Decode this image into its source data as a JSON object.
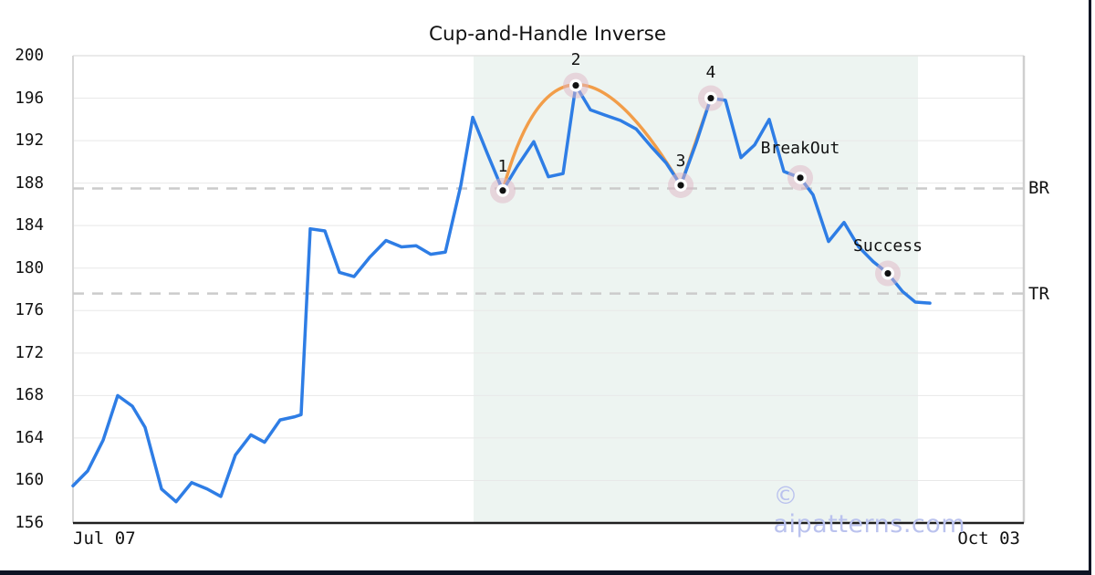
{
  "title": "Cup-and-Handle Inverse",
  "watermark": "© aipatterns.com",
  "colors": {
    "price_line": "#2e7de5",
    "pattern_overlay": "#f29d49",
    "shaded_region": "#edf4f1",
    "marker_halo": "rgba(224,182,198,0.5)",
    "marker_dot": "#111111",
    "gridline": "#e8e8e8",
    "dashed_level": "#cbcbcb",
    "watermark": "#bac2ee",
    "window_edge": "#0d1424",
    "axis_bottom": "#1f1f1f",
    "axis_light": "#d6d6d6"
  },
  "chart_data": {
    "type": "line",
    "title": "Cup-and-Handle Inverse",
    "xlabel_start": "Jul 07",
    "xlabel_end": "Oct 03",
    "ylim": [
      156,
      200
    ],
    "y_ticks": [
      156,
      160,
      164,
      168,
      172,
      176,
      180,
      184,
      188,
      192,
      196,
      200
    ],
    "grid": "horizontal",
    "series": [
      {
        "name": "price",
        "x_frac": [
          0,
          0.0154,
          0.0317,
          0.047,
          0.0624,
          0.0758,
          0.0931,
          0.1084,
          0.1248,
          0.1411,
          0.1555,
          0.1708,
          0.1871,
          0.2015,
          0.2178,
          0.2332,
          0.2399,
          0.2495,
          0.2649,
          0.2802,
          0.2956,
          0.3119,
          0.3292,
          0.3455,
          0.3609,
          0.3762,
          0.3916,
          0.4079,
          0.4204,
          0.4357,
          0.452,
          0.4674,
          0.4846,
          0.5,
          0.5154,
          0.5288,
          0.5442,
          0.5595,
          0.5758,
          0.5922,
          0.6075,
          0.6238,
          0.6392,
          0.6555,
          0.6708,
          0.6862,
          0.7025,
          0.7169,
          0.7322,
          0.7476,
          0.7649,
          0.7783,
          0.7946,
          0.8109,
          0.8263,
          0.8417,
          0.857,
          0.8724,
          0.8858,
          0.9012
        ],
        "values": [
          159.5,
          160.9,
          163.8,
          168.0,
          167.0,
          165.0,
          159.2,
          158.0,
          159.8,
          159.2,
          158.5,
          162.4,
          164.3,
          163.6,
          165.7,
          166.0,
          166.2,
          183.7,
          183.5,
          179.6,
          179.2,
          181.0,
          182.6,
          182.0,
          182.1,
          181.3,
          181.5,
          187.8,
          194.2,
          190.8,
          187.3,
          189.6,
          191.9,
          188.6,
          188.9,
          197.2,
          194.9,
          194.4,
          193.9,
          193.1,
          191.5,
          189.9,
          187.8,
          191.8,
          196.0,
          195.8,
          190.4,
          191.6,
          194.0,
          189.1,
          188.5,
          186.9,
          182.5,
          184.3,
          182.0,
          180.6,
          179.5,
          177.8,
          176.8,
          176.7
        ]
      }
    ],
    "levels": [
      {
        "id": "breakout",
        "label": "BR",
        "value": 187.5
      },
      {
        "id": "target",
        "label": "TR",
        "value": 177.6
      }
    ],
    "pattern_overlay": {
      "cup_arc": {
        "from_index": 30,
        "to_index": 42,
        "control": {
          "x_frac": 0.512,
          "value": 207.0
        }
      },
      "handle_segment": {
        "from_index": 42,
        "to_index": 44
      }
    },
    "markers": [
      {
        "label": "1",
        "index": 30,
        "label_dy": -16
      },
      {
        "label": "2",
        "index": 35,
        "label_dy": -18
      },
      {
        "label": "3",
        "index": 42,
        "label_dy": -16
      },
      {
        "label": "4",
        "index": 44,
        "label_dy": -18
      },
      {
        "label": "BreakOut",
        "index": 50,
        "label_dy": -22
      },
      {
        "label": "Success",
        "index": 56,
        "label_dy": -20
      }
    ],
    "shaded_region": {
      "x_frac_start": 0.4213,
      "x_frac_end": 0.8887
    }
  }
}
